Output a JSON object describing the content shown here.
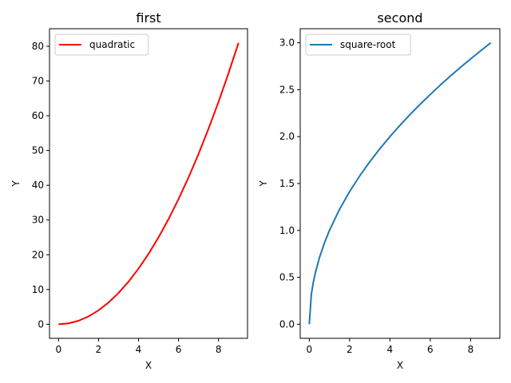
{
  "chart_data": [
    {
      "type": "line",
      "title": "first",
      "xlabel": "X",
      "ylabel": "Y",
      "xlim": [
        -0.45,
        9.45
      ],
      "ylim": [
        -4.05,
        85.05
      ],
      "x_ticks": [
        0,
        2,
        4,
        6,
        8
      ],
      "x_tick_labels": [
        "0",
        "2",
        "4",
        "6",
        "8"
      ],
      "y_ticks": [
        0,
        10,
        20,
        30,
        40,
        50,
        60,
        70,
        80
      ],
      "y_tick_labels": [
        "0",
        "10",
        "20",
        "30",
        "40",
        "50",
        "60",
        "70",
        "80"
      ],
      "grid": false,
      "legend": "top-left",
      "series": [
        {
          "name": "quadratic",
          "color": "#ff0000",
          "x": [
            0,
            0.5,
            1,
            1.5,
            2,
            2.5,
            3,
            3.5,
            4,
            4.5,
            5,
            5.5,
            6,
            6.5,
            7,
            7.5,
            8,
            8.5,
            9
          ],
          "y": [
            0,
            0.25,
            1,
            2.25,
            4,
            6.25,
            9,
            12.25,
            16,
            20.25,
            25,
            30.25,
            36,
            42.25,
            49,
            56.25,
            64,
            72.25,
            81
          ]
        }
      ]
    },
    {
      "type": "line",
      "title": "second",
      "xlabel": "X",
      "ylabel": "Y",
      "xlim": [
        -0.45,
        9.45
      ],
      "ylim": [
        -0.15,
        3.15
      ],
      "x_ticks": [
        0,
        2,
        4,
        6,
        8
      ],
      "x_tick_labels": [
        "0",
        "2",
        "4",
        "6",
        "8"
      ],
      "y_ticks": [
        0,
        0.5,
        1,
        1.5,
        2,
        2.5,
        3
      ],
      "y_tick_labels": [
        "0.0",
        "0.5",
        "1.0",
        "1.5",
        "2.0",
        "2.5",
        "3.0"
      ],
      "grid": false,
      "legend": "top-left",
      "series": [
        {
          "name": "square-root",
          "color": "#1f77b4",
          "x": [
            0,
            0.1,
            0.2,
            0.3,
            0.5,
            0.75,
            1,
            1.5,
            2,
            2.5,
            3,
            3.5,
            4,
            4.5,
            5,
            5.5,
            6,
            6.5,
            7,
            7.5,
            8,
            8.5,
            9
          ],
          "y": [
            0,
            0.316,
            0.447,
            0.548,
            0.707,
            0.866,
            1,
            1.225,
            1.414,
            1.581,
            1.732,
            1.871,
            2,
            2.121,
            2.236,
            2.345,
            2.449,
            2.55,
            2.646,
            2.739,
            2.828,
            2.915,
            3
          ]
        }
      ]
    }
  ]
}
